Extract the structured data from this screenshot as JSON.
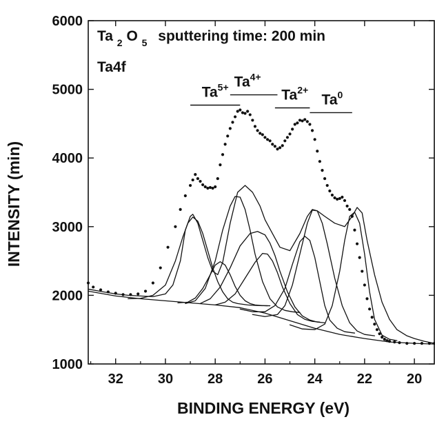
{
  "chart_data": {
    "type": "scatter",
    "title": {
      "prefix": "Ta",
      "sub1": "2",
      "mid": "O",
      "sub2": "5",
      "rest": "sputtering time: 200 min"
    },
    "subtitle": "Ta4f",
    "xlabel": "BINDING ENERGY (eV)",
    "ylabel": "INTENSITY (min)",
    "xlim": [
      33.1,
      19.2
    ],
    "ylim": [
      1000,
      6000
    ],
    "x_reversed": true,
    "x_ticks": [
      32,
      30,
      28,
      26,
      24,
      22,
      20
    ],
    "y_ticks": [
      1000,
      2000,
      3000,
      4000,
      5000,
      6000
    ],
    "grid": false,
    "legend": "none",
    "colors": {
      "points": "#111111",
      "curves": "#111111"
    },
    "annotations": [
      {
        "base": "Ta",
        "sup": "5+",
        "x_center": 28.0,
        "x_range": [
          29.0,
          27.0
        ],
        "line_y": 4770
      },
      {
        "base": "Ta",
        "sup": "4+",
        "x_center": 26.7,
        "x_range": [
          27.4,
          25.5
        ],
        "line_y": 4920
      },
      {
        "base": "Ta",
        "sup": "2+",
        "x_center": 24.8,
        "x_range": [
          25.6,
          24.2
        ],
        "line_y": 4730
      },
      {
        "base": "Ta",
        "sup": "0",
        "x_center": 23.3,
        "x_range": [
          24.2,
          22.5
        ],
        "line_y": 4660
      }
    ],
    "series": [
      {
        "type": "scatter",
        "x": [
          33.1,
          32.9,
          32.6,
          32.3,
          32.0,
          31.7,
          31.4,
          31.1,
          30.8,
          30.5,
          30.2,
          29.9,
          29.6,
          29.4,
          29.2,
          29.0,
          28.9,
          28.8,
          28.7,
          28.6,
          28.5,
          28.4,
          28.3,
          28.2,
          28.1,
          28.0,
          27.9,
          27.8,
          27.7,
          27.6,
          27.5,
          27.4,
          27.3,
          27.2,
          27.1,
          27.0,
          26.9,
          26.8,
          26.7,
          26.6,
          26.5,
          26.4,
          26.3,
          26.2,
          26.1,
          26.0,
          25.9,
          25.8,
          25.7,
          25.6,
          25.5,
          25.4,
          25.3,
          25.2,
          25.1,
          25.0,
          24.9,
          24.8,
          24.7,
          24.6,
          24.5,
          24.4,
          24.3,
          24.2,
          24.1,
          24.0,
          23.9,
          23.8,
          23.7,
          23.6,
          23.5,
          23.4,
          23.3,
          23.2,
          23.1,
          23.0,
          22.9,
          22.8,
          22.7,
          22.6,
          22.5,
          22.4,
          22.3,
          22.2,
          22.1,
          22.0,
          21.9,
          21.8,
          21.7,
          21.6,
          21.5,
          21.4,
          21.3,
          21.2,
          21.1,
          21.0,
          20.8,
          20.6,
          20.3,
          20.0,
          19.7,
          19.4,
          19.2
        ],
        "y": [
          2180,
          2120,
          2080,
          2050,
          2030,
          2010,
          2010,
          2020,
          2060,
          2180,
          2400,
          2700,
          3000,
          3250,
          3450,
          3600,
          3680,
          3760,
          3700,
          3660,
          3610,
          3580,
          3560,
          3570,
          3560,
          3580,
          3700,
          3900,
          4050,
          4200,
          4320,
          4430,
          4520,
          4600,
          4680,
          4700,
          4660,
          4650,
          4680,
          4630,
          4550,
          4460,
          4400,
          4360,
          4340,
          4300,
          4270,
          4250,
          4200,
          4170,
          4130,
          4150,
          4180,
          4250,
          4300,
          4350,
          4420,
          4490,
          4510,
          4550,
          4540,
          4560,
          4530,
          4490,
          4400,
          4270,
          4100,
          3950,
          3820,
          3700,
          3600,
          3520,
          3460,
          3420,
          3400,
          3410,
          3430,
          3380,
          3300,
          3250,
          3150,
          2950,
          2750,
          2550,
          2350,
          2150,
          1950,
          1800,
          1680,
          1580,
          1500,
          1440,
          1390,
          1360,
          1340,
          1330,
          1320,
          1310,
          1300,
          1300,
          1300,
          1300,
          1300
        ]
      },
      {
        "type": "line",
        "name": "",
        "x": [
          33.1,
          32.0,
          31.0,
          30.0,
          29.0,
          28.0,
          27.0,
          26.0,
          25.0,
          24.0,
          23.0,
          22.0,
          21.0,
          20.0,
          19.2
        ],
        "y": [
          2060,
          1990,
          1950,
          1920,
          1890,
          1860,
          1820,
          1740,
          1630,
          1520,
          1430,
          1370,
          1320,
          1300,
          1290
        ]
      },
      {
        "type": "line",
        "name": "",
        "x": [
          33.1,
          32.5,
          32.0,
          31.5,
          31.0,
          30.5,
          30.0,
          29.7,
          29.4,
          29.2,
          29.0,
          28.9,
          28.7,
          28.5,
          28.3,
          28.1,
          27.9,
          27.7,
          27.4,
          27.1,
          26.8,
          26.5,
          26.2,
          26.0,
          25.7,
          25.4,
          25.0,
          24.6,
          24.3,
          24.1,
          23.9,
          23.6,
          23.2,
          22.8,
          22.5,
          22.3,
          22.1,
          21.9,
          21.6,
          21.3,
          21.0,
          20.7,
          20.3,
          20.0,
          19.6,
          19.2
        ],
        "y": [
          2090,
          2050,
          2020,
          2000,
          1990,
          1980,
          2020,
          2150,
          2500,
          2950,
          3150,
          3180,
          3050,
          2800,
          2550,
          2350,
          2300,
          2480,
          3050,
          3500,
          3600,
          3500,
          3300,
          3100,
          2900,
          2700,
          2650,
          2900,
          3150,
          3250,
          3230,
          3150,
          3050,
          3000,
          3150,
          3280,
          3200,
          2800,
          2300,
          1900,
          1650,
          1500,
          1410,
          1370,
          1330,
          1300
        ]
      },
      {
        "type": "line",
        "name": "",
        "x": [
          31.5,
          31.0,
          30.5,
          30.0,
          29.6,
          29.3,
          29.1,
          28.9,
          28.7,
          28.5,
          28.3,
          28.1,
          27.9,
          27.7,
          27.5,
          27.3,
          27.1,
          26.9,
          26.7,
          26.5,
          26.2,
          25.9
        ],
        "y": [
          1950,
          1955,
          2000,
          2150,
          2500,
          2850,
          3050,
          3140,
          3080,
          2900,
          2650,
          2400,
          2200,
          2050,
          1950,
          1900,
          1880,
          1870,
          1860,
          1855,
          1850,
          1848
        ]
      },
      {
        "type": "line",
        "name": "",
        "x": [
          29.5,
          29.1,
          28.8,
          28.5,
          28.2,
          28.0,
          27.8,
          27.6,
          27.4,
          27.2,
          27.0,
          26.8,
          26.6,
          26.4,
          26.1,
          25.8
        ],
        "y": [
          1890,
          1900,
          1960,
          2100,
          2300,
          2440,
          2490,
          2440,
          2300,
          2130,
          2000,
          1920,
          1880,
          1860,
          1850,
          1848
        ]
      },
      {
        "type": "line",
        "name": "",
        "x": [
          29.2,
          28.8,
          28.4,
          28.0,
          27.7,
          27.4,
          27.2,
          27.0,
          26.8,
          26.6,
          26.4,
          26.1,
          25.8,
          25.5,
          25.2,
          24.9,
          24.6
        ],
        "y": [
          1880,
          1920,
          2100,
          2500,
          2950,
          3300,
          3440,
          3430,
          3250,
          2950,
          2600,
          2200,
          1950,
          1830,
          1780,
          1760,
          1750
        ]
      },
      {
        "type": "line",
        "name": "",
        "x": [
          28.6,
          28.2,
          27.8,
          27.4,
          27.0,
          26.6,
          26.3,
          26.0,
          25.8,
          25.6,
          25.4,
          25.1,
          24.8,
          24.5,
          24.2,
          23.9,
          23.6
        ],
        "y": [
          1880,
          1950,
          2120,
          2400,
          2720,
          2900,
          2930,
          2880,
          2760,
          2580,
          2350,
          2050,
          1830,
          1700,
          1640,
          1610,
          1600
        ]
      },
      {
        "type": "line",
        "name": "",
        "x": [
          28.0,
          27.6,
          27.2,
          26.8,
          26.4,
          26.1,
          25.9,
          25.7,
          25.5,
          25.3,
          25.0,
          24.7,
          24.4,
          24.1,
          23.8
        ],
        "y": [
          1860,
          1900,
          2020,
          2250,
          2480,
          2610,
          2600,
          2500,
          2330,
          2120,
          1880,
          1720,
          1650,
          1620,
          1610
        ]
      },
      {
        "type": "line",
        "name": "",
        "x": [
          27.0,
          26.5,
          26.0,
          25.6,
          25.2,
          24.9,
          24.6,
          24.4,
          24.2,
          24.0,
          23.8,
          23.6,
          23.4,
          23.1,
          22.8,
          22.4
        ],
        "y": [
          1800,
          1760,
          1760,
          1850,
          2100,
          2450,
          2780,
          2860,
          2800,
          2550,
          2200,
          1850,
          1640,
          1520,
          1470,
          1450
        ]
      },
      {
        "type": "line",
        "name": "",
        "x": [
          26.5,
          26.0,
          25.5,
          25.2,
          24.9,
          24.6,
          24.3,
          24.1,
          23.9,
          23.7,
          23.5,
          23.2,
          22.9,
          22.6,
          22.3,
          22.0,
          21.6
        ],
        "y": [
          1720,
          1690,
          1720,
          1850,
          2150,
          2600,
          3050,
          3240,
          3230,
          3050,
          2750,
          2250,
          1850,
          1600,
          1480,
          1430,
          1410
        ]
      },
      {
        "type": "line",
        "name": "",
        "x": [
          25.0,
          24.5,
          24.0,
          23.6,
          23.3,
          23.0,
          22.8,
          22.6,
          22.4,
          22.2,
          22.0,
          21.8,
          21.6,
          21.3,
          21.0,
          20.7
        ],
        "y": [
          1570,
          1510,
          1500,
          1580,
          1850,
          2350,
          2800,
          3150,
          3210,
          3050,
          2600,
          2050,
          1650,
          1420,
          1360,
          1340
        ]
      }
    ]
  }
}
